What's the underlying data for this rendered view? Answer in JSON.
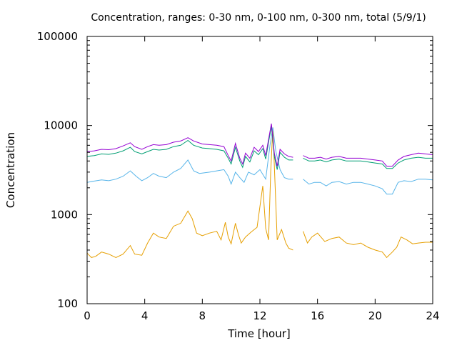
{
  "chart_data": {
    "type": "line",
    "title": "Concentration, ranges: 0-30 nm, 0-100 nm, 0-300 nm, total (5/9/1)",
    "xlabel": "Time [hour]",
    "ylabel": "Concentration",
    "xlim": [
      0,
      24
    ],
    "ylim": [
      100,
      100000
    ],
    "yscale": "log",
    "grid": false,
    "x_ticks": [
      "0",
      "4",
      "8",
      "12",
      "16",
      "20",
      "24"
    ],
    "y_ticks": [
      "100",
      "1000",
      "10000",
      "100000"
    ],
    "gap": [
      14.3,
      15.0
    ],
    "series": [
      {
        "color": "#e69f00",
        "points": [
          [
            0,
            370
          ],
          [
            0.3,
            330
          ],
          [
            0.6,
            340
          ],
          [
            1,
            380
          ],
          [
            1.5,
            360
          ],
          [
            2,
            330
          ],
          [
            2.5,
            360
          ],
          [
            3,
            450
          ],
          [
            3.3,
            360
          ],
          [
            3.8,
            350
          ],
          [
            4.2,
            480
          ],
          [
            4.6,
            620
          ],
          [
            5,
            560
          ],
          [
            5.5,
            540
          ],
          [
            6,
            740
          ],
          [
            6.5,
            800
          ],
          [
            7,
            1100
          ],
          [
            7.3,
            900
          ],
          [
            7.6,
            620
          ],
          [
            8,
            580
          ],
          [
            8.5,
            620
          ],
          [
            9,
            650
          ],
          [
            9.3,
            520
          ],
          [
            9.6,
            820
          ],
          [
            9.8,
            560
          ],
          [
            10,
            470
          ],
          [
            10.3,
            800
          ],
          [
            10.5,
            600
          ],
          [
            10.7,
            480
          ],
          [
            11,
            560
          ],
          [
            11.4,
            640
          ],
          [
            11.8,
            720
          ],
          [
            12.2,
            2100
          ],
          [
            12.4,
            700
          ],
          [
            12.6,
            520
          ],
          [
            12.75,
            3000
          ],
          [
            12.9,
            9500
          ],
          [
            13.05,
            2200
          ],
          [
            13.2,
            520
          ],
          [
            13.5,
            680
          ],
          [
            13.8,
            480
          ],
          [
            14,
            420
          ],
          [
            14.3,
            400
          ],
          [
            15,
            650
          ],
          [
            15.3,
            480
          ],
          [
            15.6,
            560
          ],
          [
            16,
            620
          ],
          [
            16.5,
            500
          ],
          [
            17,
            540
          ],
          [
            17.5,
            560
          ],
          [
            18,
            480
          ],
          [
            18.5,
            460
          ],
          [
            19,
            480
          ],
          [
            19.5,
            430
          ],
          [
            20,
            400
          ],
          [
            20.5,
            380
          ],
          [
            20.8,
            330
          ],
          [
            21.2,
            380
          ],
          [
            21.5,
            430
          ],
          [
            21.8,
            560
          ],
          [
            22.2,
            520
          ],
          [
            22.6,
            470
          ],
          [
            23,
            480
          ],
          [
            23.5,
            490
          ],
          [
            24,
            490
          ]
        ]
      },
      {
        "color": "#56b4e9",
        "points": [
          [
            0,
            2300
          ],
          [
            0.5,
            2380
          ],
          [
            1,
            2450
          ],
          [
            1.5,
            2400
          ],
          [
            2,
            2500
          ],
          [
            2.5,
            2700
          ],
          [
            3,
            3100
          ],
          [
            3.4,
            2700
          ],
          [
            3.8,
            2400
          ],
          [
            4.2,
            2600
          ],
          [
            4.6,
            2900
          ],
          [
            5,
            2700
          ],
          [
            5.5,
            2600
          ],
          [
            6,
            3000
          ],
          [
            6.5,
            3300
          ],
          [
            7,
            4100
          ],
          [
            7.4,
            3100
          ],
          [
            7.8,
            2900
          ],
          [
            8.5,
            3000
          ],
          [
            9,
            3100
          ],
          [
            9.5,
            3200
          ],
          [
            9.8,
            2700
          ],
          [
            10,
            2200
          ],
          [
            10.3,
            3000
          ],
          [
            10.6,
            2600
          ],
          [
            10.9,
            2300
          ],
          [
            11.2,
            3000
          ],
          [
            11.6,
            2800
          ],
          [
            12,
            3200
          ],
          [
            12.4,
            2500
          ],
          [
            12.7,
            6000
          ],
          [
            12.9,
            9500
          ],
          [
            13.1,
            5200
          ],
          [
            13.4,
            3200
          ],
          [
            13.7,
            2600
          ],
          [
            14,
            2500
          ],
          [
            14.3,
            2500
          ],
          [
            15,
            2500
          ],
          [
            15.4,
            2200
          ],
          [
            15.8,
            2300
          ],
          [
            16.2,
            2300
          ],
          [
            16.6,
            2100
          ],
          [
            17,
            2300
          ],
          [
            17.5,
            2350
          ],
          [
            18,
            2200
          ],
          [
            18.5,
            2300
          ],
          [
            19,
            2300
          ],
          [
            19.5,
            2200
          ],
          [
            20,
            2100
          ],
          [
            20.5,
            1950
          ],
          [
            20.8,
            1700
          ],
          [
            21.2,
            1700
          ],
          [
            21.6,
            2300
          ],
          [
            22,
            2400
          ],
          [
            22.5,
            2350
          ],
          [
            23,
            2500
          ],
          [
            23.5,
            2500
          ],
          [
            24,
            2450
          ]
        ]
      },
      {
        "color": "#009e73",
        "points": [
          [
            0,
            4500
          ],
          [
            0.5,
            4600
          ],
          [
            1,
            4800
          ],
          [
            1.5,
            4750
          ],
          [
            2,
            4900
          ],
          [
            2.5,
            5200
          ],
          [
            3,
            5700
          ],
          [
            3.3,
            5100
          ],
          [
            3.8,
            4800
          ],
          [
            4.2,
            5100
          ],
          [
            4.6,
            5400
          ],
          [
            5,
            5300
          ],
          [
            5.5,
            5400
          ],
          [
            6,
            5800
          ],
          [
            6.5,
            6000
          ],
          [
            7,
            6800
          ],
          [
            7.4,
            6000
          ],
          [
            8,
            5600
          ],
          [
            8.5,
            5500
          ],
          [
            9,
            5400
          ],
          [
            9.5,
            5200
          ],
          [
            9.8,
            4300
          ],
          [
            10,
            3700
          ],
          [
            10.3,
            5700
          ],
          [
            10.6,
            4000
          ],
          [
            10.8,
            3400
          ],
          [
            11,
            4500
          ],
          [
            11.3,
            3900
          ],
          [
            11.6,
            5200
          ],
          [
            11.9,
            4700
          ],
          [
            12.2,
            5500
          ],
          [
            12.4,
            4200
          ],
          [
            12.6,
            6500
          ],
          [
            12.8,
            9800
          ],
          [
            13,
            4500
          ],
          [
            13.2,
            3200
          ],
          [
            13.4,
            5000
          ],
          [
            13.7,
            4400
          ],
          [
            14,
            4100
          ],
          [
            14.3,
            4100
          ],
          [
            15,
            4300
          ],
          [
            15.4,
            4000
          ],
          [
            15.8,
            4000
          ],
          [
            16.2,
            4100
          ],
          [
            16.6,
            3900
          ],
          [
            17,
            4100
          ],
          [
            17.5,
            4200
          ],
          [
            18,
            4000
          ],
          [
            18.5,
            4000
          ],
          [
            19,
            4000
          ],
          [
            19.5,
            3900
          ],
          [
            20,
            3800
          ],
          [
            20.5,
            3700
          ],
          [
            20.8,
            3300
          ],
          [
            21.2,
            3300
          ],
          [
            21.6,
            3800
          ],
          [
            22,
            4100
          ],
          [
            22.5,
            4300
          ],
          [
            23,
            4400
          ],
          [
            23.5,
            4300
          ],
          [
            24,
            4300
          ]
        ]
      },
      {
        "color": "#9400d3",
        "points": [
          [
            0,
            5100
          ],
          [
            0.5,
            5200
          ],
          [
            1,
            5400
          ],
          [
            1.5,
            5350
          ],
          [
            2,
            5500
          ],
          [
            2.5,
            5900
          ],
          [
            3,
            6400
          ],
          [
            3.3,
            5800
          ],
          [
            3.8,
            5400
          ],
          [
            4.2,
            5800
          ],
          [
            4.6,
            6100
          ],
          [
            5,
            6000
          ],
          [
            5.5,
            6100
          ],
          [
            6,
            6500
          ],
          [
            6.5,
            6700
          ],
          [
            7,
            7300
          ],
          [
            7.4,
            6700
          ],
          [
            8,
            6200
          ],
          [
            8.5,
            6100
          ],
          [
            9,
            6000
          ],
          [
            9.5,
            5800
          ],
          [
            9.8,
            4600
          ],
          [
            10,
            4000
          ],
          [
            10.3,
            6300
          ],
          [
            10.6,
            4300
          ],
          [
            10.8,
            3700
          ],
          [
            11,
            4900
          ],
          [
            11.3,
            4300
          ],
          [
            11.6,
            5700
          ],
          [
            11.9,
            5100
          ],
          [
            12.2,
            6000
          ],
          [
            12.4,
            4600
          ],
          [
            12.6,
            7000
          ],
          [
            12.8,
            10500
          ],
          [
            13,
            4900
          ],
          [
            13.2,
            3500
          ],
          [
            13.4,
            5400
          ],
          [
            13.7,
            4800
          ],
          [
            14,
            4500
          ],
          [
            14.3,
            4400
          ],
          [
            15,
            4600
          ],
          [
            15.4,
            4300
          ],
          [
            15.8,
            4300
          ],
          [
            16.2,
            4400
          ],
          [
            16.6,
            4200
          ],
          [
            17,
            4400
          ],
          [
            17.5,
            4500
          ],
          [
            18,
            4300
          ],
          [
            18.5,
            4300
          ],
          [
            19,
            4300
          ],
          [
            19.5,
            4200
          ],
          [
            20,
            4100
          ],
          [
            20.5,
            4000
          ],
          [
            20.8,
            3500
          ],
          [
            21.2,
            3500
          ],
          [
            21.6,
            4100
          ],
          [
            22,
            4500
          ],
          [
            22.5,
            4700
          ],
          [
            23,
            4900
          ],
          [
            23.5,
            4800
          ],
          [
            24,
            4700
          ]
        ]
      }
    ]
  }
}
